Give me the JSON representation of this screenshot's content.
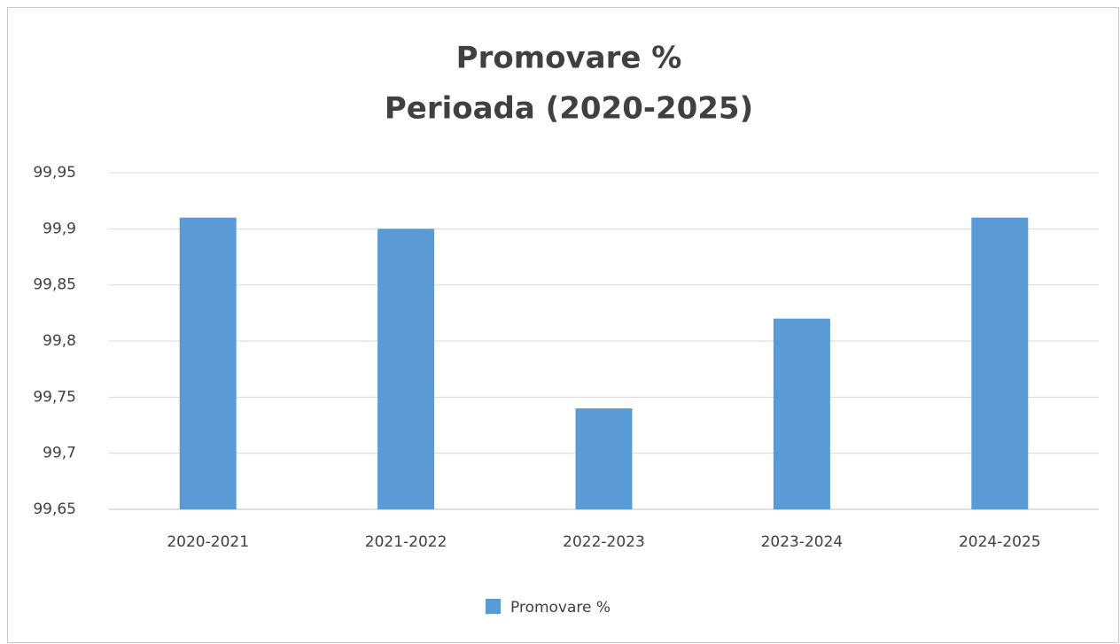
{
  "chart_data": {
    "type": "bar",
    "title": "Promovare %",
    "subtitle": "Perioada (2020-2025)",
    "categories": [
      "2020-2021",
      "2021-2022",
      "2022-2023",
      "2023-2024",
      "2024-2025"
    ],
    "series": [
      {
        "name": "Promovare %",
        "color": "#5b9bd5",
        "values": [
          99.91,
          99.9,
          99.74,
          99.82,
          99.91
        ]
      }
    ],
    "ylim": [
      99.65,
      99.95
    ],
    "yticks": [
      {
        "value": 99.65,
        "label": "99,65"
      },
      {
        "value": 99.7,
        "label": "99,7"
      },
      {
        "value": 99.75,
        "label": "99,75"
      },
      {
        "value": 99.8,
        "label": "99,8"
      },
      {
        "value": 99.85,
        "label": "99,85"
      },
      {
        "value": 99.9,
        "label": "99,9"
      },
      {
        "value": 99.95,
        "label": "99,95"
      }
    ],
    "grid": true,
    "legend": "bottom"
  }
}
